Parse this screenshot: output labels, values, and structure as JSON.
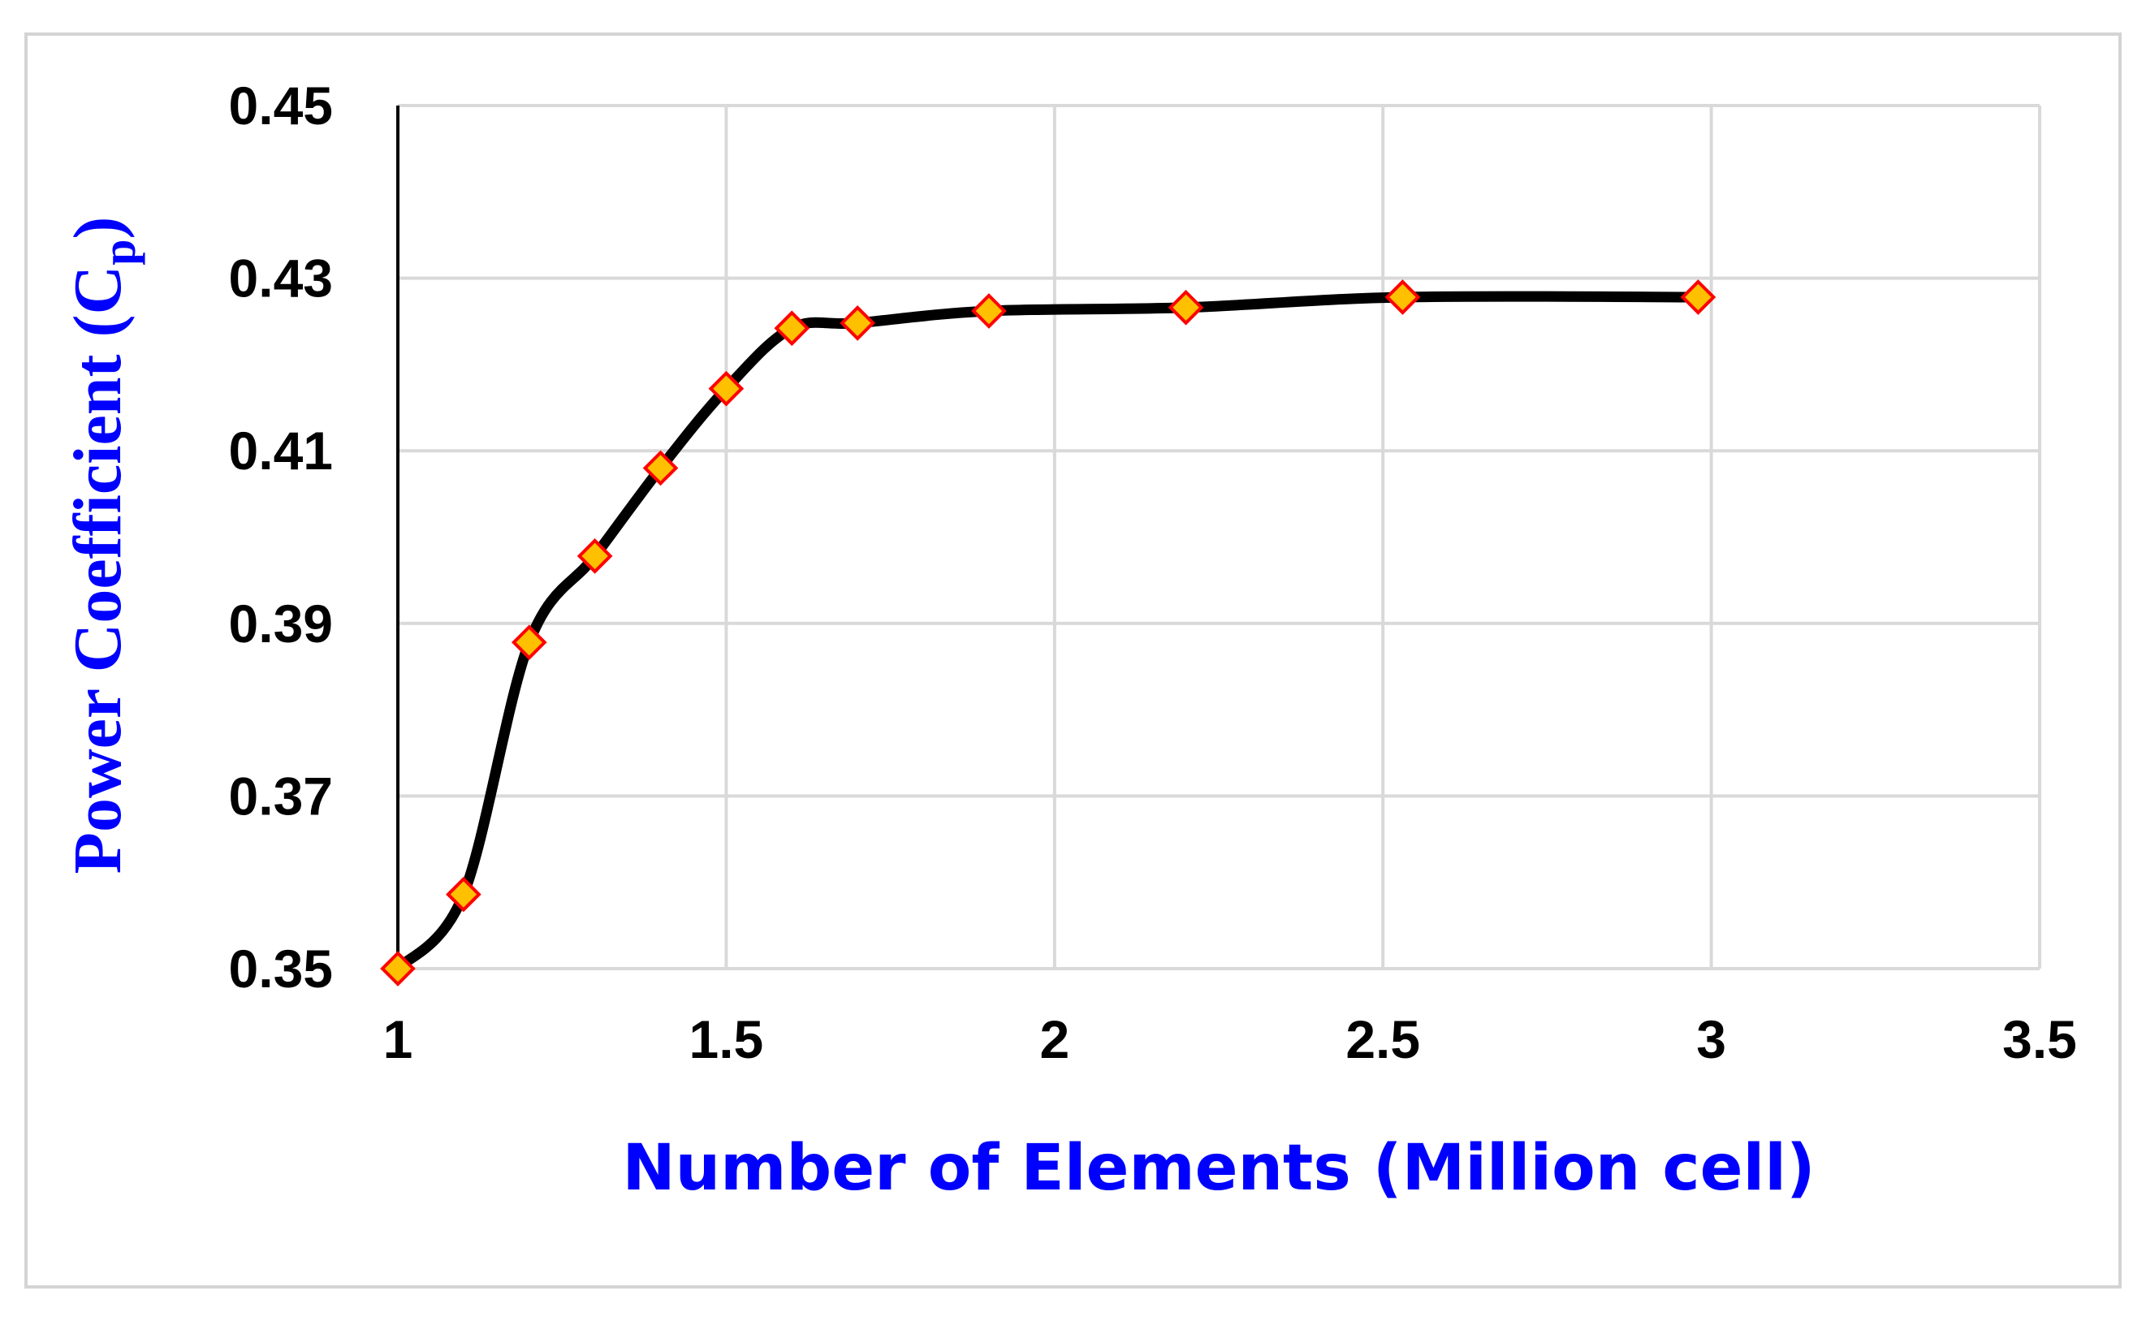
{
  "chart_data": {
    "type": "line",
    "title": "",
    "xlabel": "Number of Elements (Million cell)",
    "ylabel": {
      "main": "Power Coefficient (C",
      "sub": "p",
      "close": ")"
    },
    "xlim": [
      1,
      3.5
    ],
    "ylim": [
      0.35,
      0.45
    ],
    "x_ticks": [
      "1",
      "1.5",
      "2",
      "2.5",
      "3",
      "3.5"
    ],
    "y_ticks": [
      "0.35",
      "0.37",
      "0.39",
      "0.41",
      "0.43",
      "0.45"
    ],
    "grid": true,
    "series": [
      {
        "x": [
          1.0,
          1.1,
          1.2,
          1.3,
          1.4,
          1.5,
          1.6,
          1.7,
          1.9,
          2.2,
          2.53,
          2.98
        ],
        "y": [
          0.35,
          0.3586,
          0.3878,
          0.3978,
          0.408,
          0.4172,
          0.4242,
          0.4248,
          0.4262,
          0.4266,
          0.4278,
          0.4278
        ]
      }
    ],
    "colors": {
      "line": "#000000",
      "marker_fill": "#ffc000",
      "marker_edge": "#ff0000",
      "axis_title": "#0000ff",
      "grid": "#d9d9d9"
    }
  }
}
